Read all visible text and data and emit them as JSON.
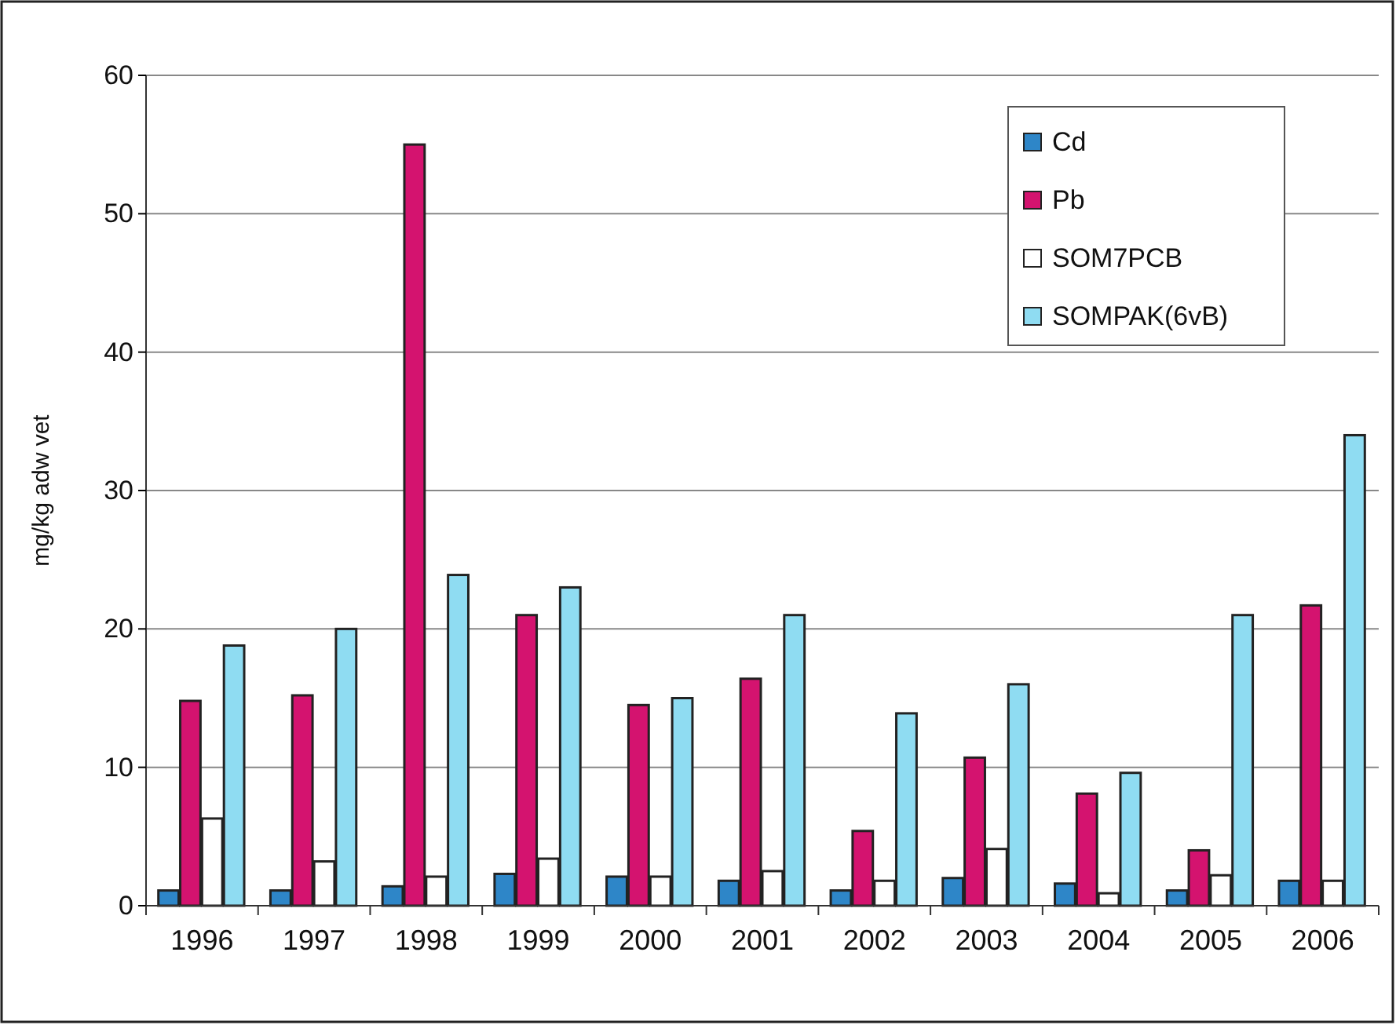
{
  "chart_data": {
    "type": "bar",
    "ylabel": "mg/kg adw vet",
    "categories": [
      "1996",
      "1997",
      "1998",
      "1999",
      "2000",
      "2001",
      "2002",
      "2003",
      "2004",
      "2005",
      "2006"
    ],
    "series": [
      {
        "name": "Cd",
        "color": "#2e86c8",
        "values": [
          1.1,
          1.1,
          1.4,
          2.3,
          2.1,
          1.8,
          1.1,
          2.0,
          1.6,
          1.1,
          1.8
        ]
      },
      {
        "name": "Pb",
        "color": "#d4136f",
        "values": [
          14.8,
          15.2,
          55,
          21,
          14.5,
          16.4,
          5.4,
          10.7,
          8.1,
          4.0,
          21.7
        ]
      },
      {
        "name": "SOM7PCB",
        "color": "#ffffff",
        "values": [
          6.3,
          3.2,
          2.1,
          3.4,
          2.1,
          2.5,
          1.8,
          4.1,
          0.9,
          2.2,
          1.8
        ]
      },
      {
        "name": "SOMPAK(6vB)",
        "color": "#8fdcf2",
        "values": [
          18.8,
          20,
          23.9,
          23,
          15,
          21,
          13.9,
          16,
          9.6,
          21,
          34
        ]
      }
    ],
    "ylim": [
      0,
      60
    ],
    "yticks": [
      0,
      10,
      20,
      30,
      40,
      50,
      60
    ],
    "grid": "y",
    "legend": "top right"
  }
}
